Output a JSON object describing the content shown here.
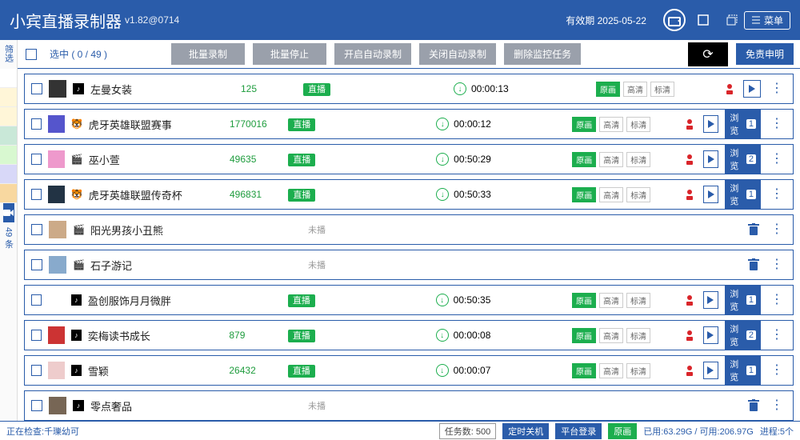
{
  "header": {
    "title": "小宾直播录制器",
    "version": "v1.82@0714",
    "expiry_prefix": "有效期",
    "expiry": "2025-05-22",
    "menu": "菜单"
  },
  "toolbar": {
    "filter": "选\n筛",
    "select_label": "选中 ( 0  /  49 )",
    "batch_record": "批量录制",
    "batch_stop": "批量停止",
    "auto_on": "开启自动录制",
    "auto_off": "关闭自动录制",
    "del_monitor": "删除监控任务",
    "refresh": "⟳",
    "disclaimer": "免责申明"
  },
  "sidebar": {
    "count": "49 条"
  },
  "quality": {
    "hd": "原画",
    "high": "高清",
    "sd": "标清"
  },
  "labels": {
    "live": "直播",
    "offline": "未播",
    "browse": "浏览"
  },
  "rows": [
    {
      "name": "左曼女装",
      "id": "125",
      "live": true,
      "time": "00:00:13",
      "rec": true,
      "play": true,
      "browse": null,
      "thumb": "#333",
      "plat": "dy"
    },
    {
      "name": "虎牙英雄联盟赛事",
      "id": "1770016",
      "live": true,
      "time": "00:00:12",
      "rec": true,
      "play": true,
      "browse": "1",
      "thumb": "#55c",
      "plat": "hy"
    },
    {
      "name": "巫小萱",
      "id": "49635",
      "live": true,
      "time": "00:50:29",
      "rec": true,
      "play": true,
      "browse": "2",
      "thumb": "#e9c",
      "plat": "dy2"
    },
    {
      "name": "虎牙英雄联盟传奇杯",
      "id": "496831",
      "live": true,
      "time": "00:50:33",
      "rec": true,
      "play": true,
      "browse": "1",
      "thumb": "#234",
      "plat": "hy"
    },
    {
      "name": "阳光男孩小丑熊",
      "id": "",
      "live": false,
      "time": "",
      "rec": false,
      "play": false,
      "browse": null,
      "thumb": "#ca8",
      "plat": "dy2"
    },
    {
      "name": "石子游记",
      "id": "",
      "live": false,
      "time": "",
      "rec": false,
      "play": false,
      "browse": null,
      "thumb": "#8ac",
      "plat": "dy2"
    },
    {
      "name": "盈创服饰月月微胖",
      "id": "",
      "live": true,
      "time": "00:50:35",
      "rec": true,
      "play": true,
      "browse": "1",
      "thumb": "#fff",
      "plat": "dy"
    },
    {
      "name": "奕梅读书成长",
      "id": "879",
      "live": true,
      "time": "00:00:08",
      "rec": true,
      "play": true,
      "browse": "2",
      "thumb": "#c33",
      "plat": "dy"
    },
    {
      "name": "雪颖",
      "id": "26432",
      "live": true,
      "time": "00:00:07",
      "rec": true,
      "play": true,
      "browse": "1",
      "thumb": "#ecc",
      "plat": "dy"
    },
    {
      "name": "零点奢品",
      "id": "",
      "live": false,
      "time": "",
      "rec": false,
      "play": false,
      "browse": null,
      "thumb": "#765",
      "plat": "dy"
    }
  ],
  "status": {
    "checking_prefix": "正在检查:",
    "checking_name": "千瓅幼可",
    "task_count": "任务数: 500",
    "shutdown": "定时关机",
    "platform_login": "平台登录",
    "orig": "原画",
    "disk": "已用:63.29G / 可用:206.97G",
    "proc": "进程:5个"
  },
  "colors": {
    "primary": "#2a5caa",
    "green": "#1cae4e",
    "red": "#d9252a"
  }
}
